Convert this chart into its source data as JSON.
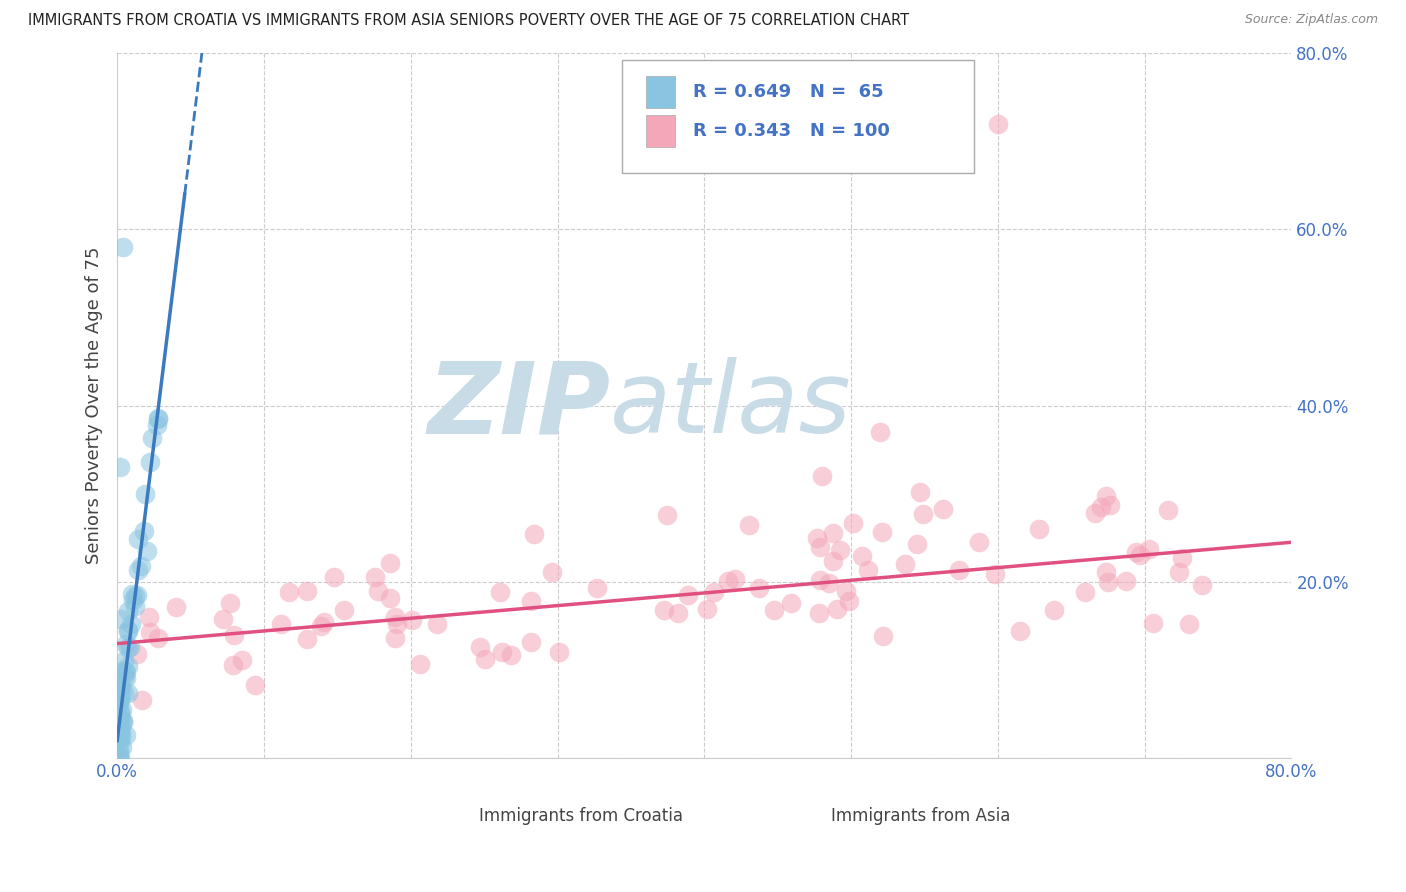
{
  "title": "IMMIGRANTS FROM CROATIA VS IMMIGRANTS FROM ASIA SENIORS POVERTY OVER THE AGE OF 75 CORRELATION CHART",
  "source": "Source: ZipAtlas.com",
  "ylabel": "Seniors Poverty Over the Age of 75",
  "legend_label_1": "Immigrants from Croatia",
  "legend_label_2": "Immigrants from Asia",
  "R1": 0.649,
  "N1": 65,
  "R2": 0.343,
  "N2": 100,
  "color_croatia": "#89c4e1",
  "color_asia": "#f4a7b9",
  "color_trendline_croatia": "#3a7abf",
  "color_trendline_asia": "#e05080",
  "xlim": [
    0.0,
    0.8
  ],
  "ylim": [
    0.0,
    0.8
  ],
  "xticks": [
    0.0,
    0.1,
    0.2,
    0.3,
    0.4,
    0.5,
    0.6,
    0.7,
    0.8
  ],
  "yticks": [
    0.0,
    0.2,
    0.4,
    0.6,
    0.8
  ],
  "xticklabels_bottom": [
    "0.0%",
    "",
    "",
    "",
    "",
    "",
    "",
    "",
    "80.0%"
  ],
  "yticklabels_right": [
    "",
    "20.0%",
    "40.0%",
    "60.0%",
    "80.0%"
  ],
  "tick_color": "#4472c4",
  "background_color": "#ffffff",
  "watermark_color": "#d8ecf8",
  "grid_color": "#cccccc",
  "legend_box_color": "#aaaaaa",
  "legend_text_color": "#4472c4"
}
